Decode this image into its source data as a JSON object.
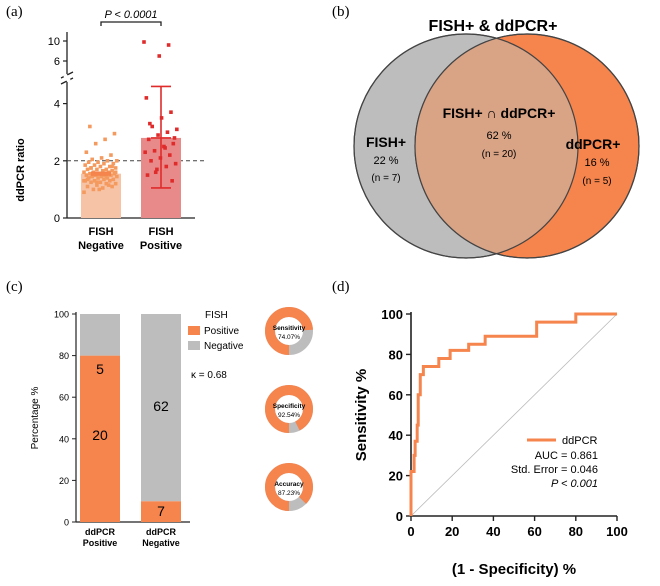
{
  "colors": {
    "orange": "#f5844d",
    "light_orange": "#f7c3a6",
    "pink": "#e8898a",
    "red_dot": "#e02b2b",
    "dot_orange": "#f49a5e",
    "gray": "#bdbdbd",
    "overlap": "#d9a386",
    "dark": "#222222"
  },
  "panel_a": {
    "label": "(a)",
    "ylabel": "ddPCR ratio",
    "y_ticks": [
      "0",
      "2",
      "4",
      "6",
      "10"
    ],
    "categories": [
      {
        "line1": "FISH",
        "line2": "Negative"
      },
      {
        "line1": "FISH",
        "line2": "Positive"
      }
    ],
    "significance": "P < 0.0001",
    "cutoff": 2,
    "chart_data": {
      "type": "bar",
      "categories": [
        "FISH Negative",
        "FISH Positive"
      ],
      "values": [
        1.55,
        2.8
      ],
      "error": [
        [
          1.5,
          1.6
        ],
        [
          1.05,
          4.6
        ]
      ],
      "ylim": [
        0,
        10
      ],
      "reference_line": 2,
      "points_negative": [
        0.9,
        1.0,
        1.05,
        1.1,
        1.1,
        1.15,
        1.2,
        1.2,
        1.25,
        1.25,
        1.3,
        1.3,
        1.3,
        1.35,
        1.35,
        1.4,
        1.4,
        1.4,
        1.45,
        1.45,
        1.45,
        1.5,
        1.5,
        1.5,
        1.5,
        1.55,
        1.55,
        1.55,
        1.6,
        1.6,
        1.6,
        1.65,
        1.65,
        1.7,
        1.7,
        1.7,
        1.75,
        1.75,
        1.8,
        1.8,
        1.85,
        1.85,
        1.9,
        1.9,
        1.95,
        1.95,
        2.0,
        2.0,
        2.05,
        2.1,
        2.2,
        2.3,
        2.6,
        2.75,
        2.95,
        3.2,
        1.0,
        1.15,
        1.3,
        1.5,
        1.65,
        1.8,
        1.35,
        1.25,
        1.45,
        1.6,
        1.75
      ],
      "points_positive": [
        1.3,
        1.5,
        1.7,
        1.8,
        1.9,
        2.0,
        2.1,
        2.2,
        2.3,
        2.35,
        2.5,
        2.6,
        2.75,
        2.9,
        3.0,
        3.1,
        3.2,
        3.5,
        3.7,
        4.2,
        1.6,
        2.45,
        2.8,
        3.3,
        7.0,
        9.2,
        9.8
      ]
    }
  },
  "panel_b": {
    "label": "(b)",
    "title": "FISH+ & ddPCR+",
    "left_title": "FISH+",
    "left_pct": "22 %",
    "left_n": "(n = 7)",
    "center_title": "FISH+ ∩ ddPCR+",
    "center_pct": "62 %",
    "center_n": "(n = 20)",
    "right_title": "ddPCR+",
    "right_pct": "16 %",
    "right_n": "(n = 5)",
    "chart_data": {
      "type": "venn",
      "sets": [
        {
          "name": "FISH+",
          "only_pct": 22,
          "only_n": 7
        },
        {
          "name": "ddPCR+",
          "only_pct": 16,
          "only_n": 5
        }
      ],
      "intersection": {
        "name": "FISH+ ∩ ddPCR+",
        "pct": 62,
        "n": 20
      }
    }
  },
  "panel_c": {
    "label": "(c)",
    "ylabel": "Percentage %",
    "y_ticks": [
      "0",
      "20",
      "40",
      "60",
      "80",
      "100"
    ],
    "categories": [
      {
        "line1": "ddPCR",
        "line2": "Positive"
      },
      {
        "line1": "ddPCR",
        "line2": "Negative"
      }
    ],
    "legend_title": "FISH",
    "legend": [
      "Positive",
      "Negative"
    ],
    "kappa": "κ = 0.68",
    "bar_labels": {
      "pos_top": "5",
      "pos_bottom": "20",
      "neg_top": "62",
      "neg_bottom": "7"
    },
    "donuts": [
      {
        "name": "Sensitivity",
        "value": "74.07%",
        "fraction": 0.7407
      },
      {
        "name": "Specificity",
        "value": "92.54%",
        "fraction": 0.9254
      },
      {
        "name": "Accuracy",
        "value": "87.23%",
        "fraction": 0.8723
      }
    ],
    "chart_data": {
      "type": "bar",
      "stacked": true,
      "categories": [
        "ddPCR Positive",
        "ddPCR Negative"
      ],
      "series": [
        {
          "name": "Positive",
          "values": [
            20,
            7
          ],
          "percent": [
            80,
            10
          ]
        },
        {
          "name": "Negative",
          "values": [
            5,
            62
          ],
          "percent": [
            20,
            90
          ]
        }
      ],
      "ylim": [
        0,
        100
      ]
    }
  },
  "panel_d": {
    "label": "(d)",
    "ylabel": "Sensitivity %",
    "xlabel": "(1 - Specificity) %",
    "ticks": [
      "0",
      "20",
      "40",
      "60",
      "80",
      "100"
    ],
    "legend": "ddPCR",
    "auc": "AUC = 0.861",
    "std_error": "Std. Error = 0.046",
    "p_value": "P < 0.001",
    "chart_data": {
      "type": "line",
      "series": [
        {
          "name": "ddPCR",
          "points": [
            [
              0,
              0
            ],
            [
              0,
              22
            ],
            [
              1.5,
              22
            ],
            [
              1.5,
              30
            ],
            [
              2,
              30
            ],
            [
              2,
              37
            ],
            [
              3,
              37
            ],
            [
              3,
              45
            ],
            [
              3.5,
              45
            ],
            [
              3.5,
              60
            ],
            [
              4.5,
              60
            ],
            [
              4.5,
              70
            ],
            [
              6,
              70
            ],
            [
              6,
              74
            ],
            [
              13.5,
              74
            ],
            [
              13.5,
              78
            ],
            [
              19,
              78
            ],
            [
              19,
              82
            ],
            [
              28,
              82
            ],
            [
              28,
              85
            ],
            [
              36,
              85
            ],
            [
              36,
              89
            ],
            [
              61,
              89
            ],
            [
              61,
              96
            ],
            [
              80,
              96
            ],
            [
              80,
              100
            ],
            [
              100,
              100
            ]
          ]
        }
      ],
      "reference_line": [
        [
          0,
          0
        ],
        [
          100,
          100
        ]
      ],
      "xlim": [
        0,
        100
      ],
      "ylim": [
        0,
        100
      ]
    }
  }
}
